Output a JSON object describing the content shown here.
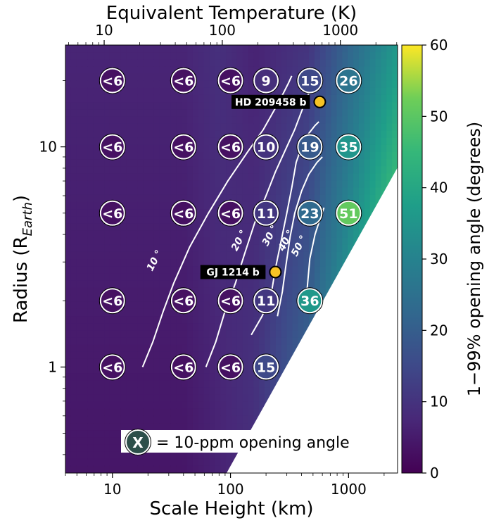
{
  "chart_data": {
    "type": "heatmap",
    "title": "",
    "xlabel": "Scale Height (km)",
    "ylabel": "Radius (R",
    "ylabel_sub": "Earth",
    "x2label": "Equivalent Temperature (K)",
    "colorbar_label": "1−99% opening angle (degrees)",
    "x_scale": "log",
    "y_scale": "log",
    "x2_scale": "log",
    "xlim": [
      4,
      2600
    ],
    "ylim": [
      0.33,
      29
    ],
    "x2lim": [
      4.7,
      3050
    ],
    "clim": [
      0,
      60
    ],
    "colormap": "viridis",
    "xticks": [
      {
        "value": 10,
        "label": "10"
      },
      {
        "value": 100,
        "label": "100"
      },
      {
        "value": 1000,
        "label": "1000"
      }
    ],
    "yticks": [
      {
        "value": 1,
        "label": "1"
      },
      {
        "value": 10,
        "label": "10"
      }
    ],
    "x2ticks": [
      {
        "value": 10,
        "label": "10"
      },
      {
        "value": 100,
        "label": "100"
      },
      {
        "value": 1000,
        "label": "1000"
      }
    ],
    "cticks": [
      {
        "value": 0,
        "label": "0"
      },
      {
        "value": 10,
        "label": "10"
      },
      {
        "value": 20,
        "label": "20"
      },
      {
        "value": 30,
        "label": "30"
      },
      {
        "value": 40,
        "label": "40"
      },
      {
        "value": 50,
        "label": "50"
      },
      {
        "value": 60,
        "label": "60"
      }
    ],
    "markers_10ppm": [
      {
        "x": 10,
        "y": 20,
        "label": "<6",
        "value": 3
      },
      {
        "x": 40,
        "y": 20,
        "label": "<6",
        "value": 3
      },
      {
        "x": 100,
        "y": 20,
        "label": "<6",
        "value": 3
      },
      {
        "x": 200,
        "y": 20,
        "label": "9",
        "value": 9
      },
      {
        "x": 470,
        "y": 20,
        "label": "15",
        "value": 15
      },
      {
        "x": 1000,
        "y": 20,
        "label": "26",
        "value": 26
      },
      {
        "x": 10,
        "y": 10,
        "label": "<6",
        "value": 3
      },
      {
        "x": 40,
        "y": 10,
        "label": "<6",
        "value": 3
      },
      {
        "x": 100,
        "y": 10,
        "label": "<6",
        "value": 3
      },
      {
        "x": 200,
        "y": 10,
        "label": "10",
        "value": 10
      },
      {
        "x": 470,
        "y": 10,
        "label": "19",
        "value": 19
      },
      {
        "x": 1000,
        "y": 10,
        "label": "35",
        "value": 35
      },
      {
        "x": 10,
        "y": 5,
        "label": "<6",
        "value": 3
      },
      {
        "x": 40,
        "y": 5,
        "label": "<6",
        "value": 3
      },
      {
        "x": 100,
        "y": 5,
        "label": "<6",
        "value": 3
      },
      {
        "x": 200,
        "y": 5,
        "label": "11",
        "value": 11
      },
      {
        "x": 470,
        "y": 5,
        "label": "23",
        "value": 23
      },
      {
        "x": 1000,
        "y": 5,
        "label": "51",
        "value": 51
      },
      {
        "x": 10,
        "y": 2,
        "label": "<6",
        "value": 3
      },
      {
        "x": 40,
        "y": 2,
        "label": "<6",
        "value": 3
      },
      {
        "x": 100,
        "y": 2,
        "label": "<6",
        "value": 3
      },
      {
        "x": 200,
        "y": 2,
        "label": "11",
        "value": 11
      },
      {
        "x": 470,
        "y": 2,
        "label": "36",
        "value": 36
      },
      {
        "x": 10,
        "y": 1,
        "label": "<6",
        "value": 3
      },
      {
        "x": 40,
        "y": 1,
        "label": "<6",
        "value": 3
      },
      {
        "x": 100,
        "y": 1,
        "label": "<6",
        "value": 3
      },
      {
        "x": 200,
        "y": 1,
        "label": "15",
        "value": 15
      }
    ],
    "planets": [
      {
        "name": "HD 209458 b",
        "x": 570,
        "y": 16,
        "color": "#f7c325"
      },
      {
        "name": "GJ 1214 b",
        "x": 240,
        "y": 2.7,
        "color": "#f7c325"
      }
    ],
    "contours": [
      {
        "level": 10,
        "label": "10 °",
        "label_at": [
          24,
          3.0
        ],
        "points": [
          [
            18,
            1.0
          ],
          [
            22,
            1.3
          ],
          [
            27,
            1.8
          ],
          [
            33,
            2.4
          ],
          [
            45,
            3.5
          ],
          [
            65,
            5.0
          ],
          [
            95,
            7.0
          ],
          [
            140,
            9.5
          ],
          [
            190,
            12.0
          ],
          [
            240,
            15.0
          ],
          [
            280,
            17.5
          ],
          [
            310,
            19.5
          ],
          [
            330,
            21.0
          ]
        ]
      },
      {
        "level": 20,
        "label": "20 °",
        "label_at": [
          125,
          3.7
        ],
        "points": [
          [
            62,
            1.0
          ],
          [
            75,
            1.3
          ],
          [
            90,
            1.8
          ],
          [
            110,
            2.4
          ],
          [
            130,
            3.2
          ],
          [
            160,
            4.5
          ],
          [
            200,
            6.0
          ],
          [
            240,
            7.7
          ],
          [
            300,
            10.0
          ],
          [
            350,
            12.0
          ],
          [
            400,
            14.5
          ],
          [
            450,
            17.0
          ],
          [
            500,
            19.5
          ],
          [
            560,
            22.0
          ]
        ]
      },
      {
        "level": 30,
        "label": "30 °",
        "label_at": [
          228,
          3.9
        ],
        "points": [
          [
            150,
            1.4
          ],
          [
            185,
            1.7
          ],
          [
            220,
            2.1
          ],
          [
            240,
            2.8
          ],
          [
            270,
            3.8
          ],
          [
            300,
            5.0
          ],
          [
            330,
            6.5
          ],
          [
            360,
            8.5
          ],
          [
            400,
            10.0
          ],
          [
            460,
            11.5
          ],
          [
            520,
            12.5
          ],
          [
            560,
            13.0
          ]
        ]
      },
      {
        "level": 40,
        "label": "40 °",
        "label_at": [
          312,
          3.7
        ],
        "points": [
          [
            250,
            1.7
          ],
          [
            275,
            2.2
          ],
          [
            295,
            2.9
          ],
          [
            320,
            3.9
          ],
          [
            350,
            5.0
          ],
          [
            400,
            6.3
          ],
          [
            460,
            7.5
          ],
          [
            540,
            8.5
          ],
          [
            600,
            9.0
          ]
        ]
      },
      {
        "level": 50,
        "label": "50 °",
        "label_at": [
          402,
          3.5
        ],
        "points": [
          [
            430,
            1.8
          ],
          [
            450,
            2.4
          ],
          [
            470,
            3.1
          ],
          [
            520,
            4.0
          ],
          [
            580,
            4.8
          ],
          [
            620,
            5.3
          ]
        ]
      }
    ],
    "legend_text": "= 10-ppm opening angle",
    "legend_symbol": "X"
  }
}
